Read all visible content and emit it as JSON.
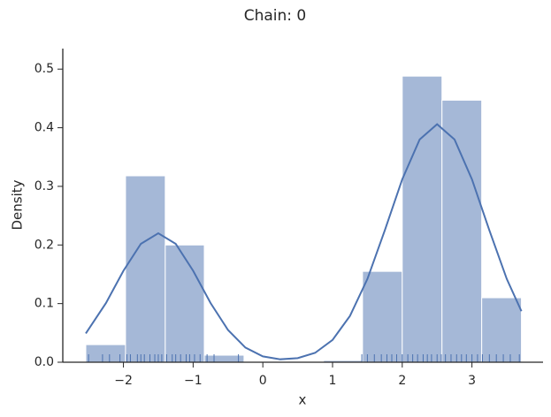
{
  "chart_data": {
    "type": "histogram",
    "title": "Chain: 0",
    "x_label": "x",
    "y_label": "Density",
    "bins": [
      -2.54,
      -1.97,
      -1.4,
      -0.84,
      -0.27,
      0.3,
      0.87,
      1.43,
      2.0,
      2.57,
      3.14,
      3.71
    ],
    "values": [
      0.03,
      0.318,
      0.2,
      0.012,
      0,
      0,
      0.003,
      0.155,
      0.488,
      0.447,
      0.11
    ],
    "color": "#4c72b0",
    "kde": {
      "x": [
        -2.54,
        -2.25,
        -2.0,
        -1.75,
        -1.5,
        -1.25,
        -1.0,
        -0.75,
        -0.5,
        -0.25,
        0,
        0.25,
        0.5,
        0.75,
        1.0,
        1.25,
        1.5,
        1.75,
        2.0,
        2.25,
        2.5,
        2.75,
        3.0,
        3.25,
        3.5,
        3.71
      ],
      "y": [
        0.049,
        0.101,
        0.156,
        0.202,
        0.22,
        0.202,
        0.156,
        0.101,
        0.055,
        0.025,
        0.01,
        0.005,
        0.007,
        0.016,
        0.038,
        0.079,
        0.142,
        0.225,
        0.312,
        0.38,
        0.406,
        0.38,
        0.312,
        0.225,
        0.142,
        0.087
      ]
    },
    "rug": [
      -2.5,
      -2.3,
      -2.2,
      -2.05,
      -1.95,
      -1.9,
      -1.8,
      -1.75,
      -1.7,
      -1.62,
      -1.55,
      -1.5,
      -1.45,
      -1.38,
      -1.3,
      -1.25,
      -1.18,
      -1.1,
      -1.05,
      -0.98,
      -0.9,
      -0.8,
      -0.7,
      -0.35,
      1.42,
      1.5,
      1.6,
      1.7,
      1.78,
      1.85,
      1.92,
      2.0,
      2.08,
      2.15,
      2.22,
      2.3,
      2.36,
      2.42,
      2.5,
      2.56,
      2.62,
      2.7,
      2.78,
      2.85,
      2.92,
      3.0,
      3.08,
      3.15,
      3.25,
      3.35,
      3.45,
      3.55,
      3.68
    ],
    "xlim": [
      -2.87,
      4.02
    ],
    "ylim": [
      0,
      0.535
    ],
    "xticks": [
      {
        "value": -2,
        "label": "−2"
      },
      {
        "value": -1,
        "label": "−1"
      },
      0,
      1,
      2,
      3
    ],
    "yticks": [
      {
        "value": 0,
        "label": "0.0"
      },
      0.1,
      0.2,
      0.3,
      0.4,
      0.5
    ]
  }
}
